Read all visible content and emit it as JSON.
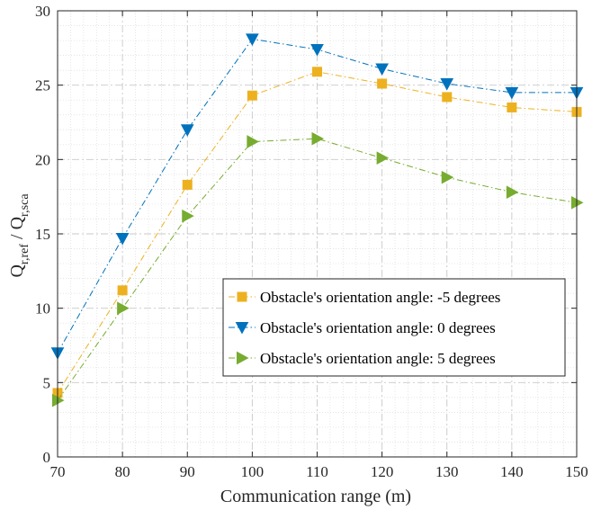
{
  "chart_data": {
    "type": "line",
    "title": "",
    "xlabel": "Communication range (m)",
    "ylabel": {
      "base1": "Q",
      "sub1": "r,ref",
      "sep": " / ",
      "base2": "Q",
      "sub2": "r,sca"
    },
    "x": [
      70,
      80,
      90,
      100,
      110,
      120,
      130,
      140,
      150
    ],
    "xlim": [
      70,
      150
    ],
    "ylim": [
      0,
      30
    ],
    "xticks": [
      70,
      80,
      90,
      100,
      110,
      120,
      130,
      140,
      150
    ],
    "yticks": [
      0,
      5,
      10,
      15,
      20,
      25,
      30
    ],
    "grid": true,
    "legend_position": "center-right",
    "series": [
      {
        "name": "Obstacle's orientation angle: -5 degrees",
        "color": "#EDB120",
        "marker": "square",
        "values": [
          4.3,
          11.2,
          18.3,
          24.3,
          25.9,
          25.1,
          24.2,
          23.5,
          23.2
        ]
      },
      {
        "name": "Obstacle's orientation angle: 0 degrees",
        "color": "#0072BD",
        "marker": "triangle-down",
        "values": [
          7.0,
          14.7,
          22.0,
          28.1,
          27.4,
          26.1,
          25.1,
          24.5,
          24.5
        ]
      },
      {
        "name": "Obstacle's orientation angle: 5 degrees",
        "color": "#77AC30",
        "marker": "triangle-right",
        "values": [
          3.8,
          10.0,
          16.2,
          21.2,
          21.4,
          20.1,
          18.8,
          17.8,
          17.1
        ]
      }
    ]
  }
}
